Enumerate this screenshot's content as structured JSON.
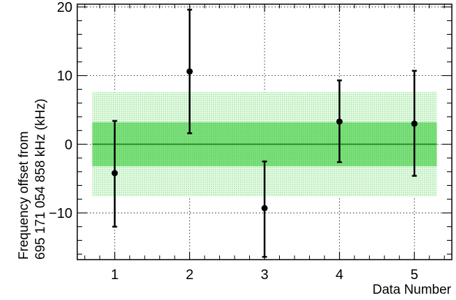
{
  "chart_data": {
    "type": "scatter",
    "xlabel": "Data Number",
    "ylabel_lines": [
      "Frequency offset from",
      "695 171 054 858 kHz (kHz)"
    ],
    "xlim": [
      0.5,
      5.5
    ],
    "ylim": [
      -16.8,
      20.4
    ],
    "x_ticks": [
      1,
      2,
      3,
      4,
      5
    ],
    "y_ticks": [
      -10,
      0,
      10,
      20
    ],
    "grid": true,
    "points": [
      {
        "x": 1,
        "y": -4.2,
        "err_low": -12.0,
        "err_high": 3.4
      },
      {
        "x": 2,
        "y": 10.6,
        "err_low": 1.6,
        "err_high": 19.6
      },
      {
        "x": 3,
        "y": -9.3,
        "err_low": -16.4,
        "err_high": -2.5
      },
      {
        "x": 4,
        "y": 3.3,
        "err_low": -2.6,
        "err_high": 9.3
      },
      {
        "x": 5,
        "y": 3.0,
        "err_low": -4.6,
        "err_high": 10.7
      }
    ],
    "mean": 0.0,
    "band_range": [
      0.7,
      5.3
    ],
    "bands": [
      {
        "low": -7.6,
        "high": 7.6,
        "color": "#b9f0b9"
      },
      {
        "low": -3.2,
        "high": 3.2,
        "color": "#66e066"
      }
    ],
    "mean_line_color": "#2a8a2a"
  }
}
